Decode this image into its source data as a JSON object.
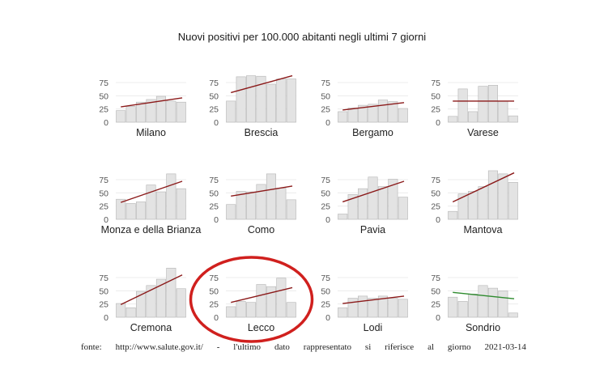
{
  "title": "Nuovi positivi per 100.000 abitanti negli ultimi 7 giorni",
  "caption": {
    "words": [
      "fonte:",
      "http://www.salute.gov.it/",
      "-",
      "l'ultimo",
      "dato",
      "rappresentato",
      "si",
      "riferisce",
      "al",
      "giorno",
      "2021-03-14"
    ]
  },
  "colors": {
    "bar_fill": "#e3e3e3",
    "bar_stroke": "#b5b5b5",
    "trend_up": "#8b1a1a",
    "trend_down": "#2e8b2e",
    "highlight": "#d0201e",
    "grid": "#ececec",
    "tick_text": "#555555"
  },
  "highlighted_panel": "Lecco",
  "chart_data": {
    "type": "bar",
    "layout": "small-multiples",
    "y_ticks": [
      0,
      25,
      50,
      75
    ],
    "ylim": [
      0,
      95
    ],
    "grid": true,
    "panels": [
      {
        "name": "Milano",
        "values": [
          22,
          30,
          38,
          43,
          49,
          40,
          38
        ],
        "trend": [
          29,
          46
        ],
        "trend_dir": "up"
      },
      {
        "name": "Brescia",
        "values": [
          40,
          86,
          88,
          87,
          72,
          82,
          82
        ],
        "trend": [
          56,
          88
        ],
        "trend_dir": "up"
      },
      {
        "name": "Bergamo",
        "values": [
          20,
          27,
          32,
          34,
          42,
          39,
          26
        ],
        "trend": [
          23,
          37
        ],
        "trend_dir": "up"
      },
      {
        "name": "Varese",
        "values": [
          11,
          63,
          20,
          68,
          70,
          40,
          12
        ],
        "trend": [
          40,
          40
        ],
        "trend_dir": "flat"
      },
      {
        "name": "Monza e della Brianza",
        "values": [
          38,
          30,
          33,
          65,
          52,
          86,
          58
        ],
        "trend": [
          32,
          72
        ],
        "trend_dir": "up"
      },
      {
        "name": "Como",
        "values": [
          28,
          53,
          52,
          66,
          86,
          59,
          37
        ],
        "trend": [
          44,
          63
        ],
        "trend_dir": "up"
      },
      {
        "name": "Pavia",
        "values": [
          10,
          47,
          58,
          80,
          62,
          76,
          42
        ],
        "trend": [
          33,
          72
        ],
        "trend_dir": "up"
      },
      {
        "name": "Mantova",
        "values": [
          15,
          48,
          53,
          62,
          92,
          86,
          70
        ],
        "trend": [
          33,
          88
        ],
        "trend_dir": "up"
      },
      {
        "name": "Cremona",
        "values": [
          26,
          18,
          49,
          60,
          72,
          93,
          54
        ],
        "trend": [
          24,
          80
        ],
        "trend_dir": "up"
      },
      {
        "name": "Lecco",
        "values": [
          20,
          30,
          28,
          62,
          58,
          74,
          28
        ],
        "trend": [
          28,
          56
        ],
        "trend_dir": "up"
      },
      {
        "name": "Lodi",
        "values": [
          18,
          36,
          40,
          36,
          40,
          36,
          34
        ],
        "trend": [
          26,
          40
        ],
        "trend_dir": "up"
      },
      {
        "name": "Sondrio",
        "values": [
          38,
          30,
          44,
          60,
          55,
          50,
          8
        ],
        "trend": [
          47,
          35
        ],
        "trend_dir": "down"
      }
    ]
  }
}
